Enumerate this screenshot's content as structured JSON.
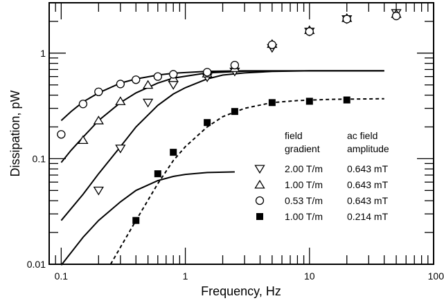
{
  "chart_data": {
    "type": "scatter",
    "xlabel": "Frequency, Hz",
    "ylabel": "Dissipation, pW",
    "xscale": "log",
    "yscale": "log",
    "xlim": [
      0.08,
      100
    ],
    "ylim": [
      0.01,
      3
    ],
    "x_tick_labels": [
      {
        "value": 0.1,
        "label": "0.1"
      },
      {
        "value": 1,
        "label": "1"
      },
      {
        "value": 10,
        "label": "10"
      },
      {
        "value": 100,
        "label": "100"
      }
    ],
    "y_tick_labels": [
      {
        "value": 0.01,
        "label": "0.01"
      },
      {
        "value": 0.1,
        "label": "0.1"
      },
      {
        "value": 1,
        "label": "1"
      }
    ],
    "legend": {
      "header_col1": [
        "field",
        "gradient"
      ],
      "header_col2": [
        "ac field",
        "amplitude"
      ],
      "placement": "lower-right"
    },
    "series": [
      {
        "gradient": "2.00 T/m",
        "amplitude": "0.643 mT",
        "marker": "triangle-down-open",
        "points": [
          [
            0.2,
            0.05
          ],
          [
            0.3,
            0.125
          ],
          [
            0.5,
            0.34
          ],
          [
            0.8,
            0.5
          ],
          [
            1.5,
            0.59
          ],
          [
            2.5,
            0.67
          ],
          [
            5,
            1.12
          ],
          [
            10,
            1.6
          ],
          [
            20,
            2.1
          ],
          [
            50,
            2.4
          ]
        ]
      },
      {
        "gradient": "1.00 T/m",
        "amplitude": "0.643 mT",
        "marker": "triangle-up-open",
        "points": [
          [
            0.15,
            0.15
          ],
          [
            0.2,
            0.23
          ],
          [
            0.3,
            0.35
          ],
          [
            0.5,
            0.5
          ],
          [
            0.8,
            0.58
          ],
          [
            1.5,
            0.64
          ],
          [
            2.5,
            0.72
          ],
          [
            5,
            1.22
          ],
          [
            10,
            1.65
          ],
          [
            20,
            2.15
          ],
          [
            50,
            2.35
          ]
        ]
      },
      {
        "gradient": "0.53 T/m",
        "amplitude": "0.643 mT",
        "marker": "circle-open",
        "points": [
          [
            0.1,
            0.17
          ],
          [
            0.15,
            0.33
          ],
          [
            0.2,
            0.43
          ],
          [
            0.3,
            0.51
          ],
          [
            0.4,
            0.56
          ],
          [
            0.6,
            0.6
          ],
          [
            0.8,
            0.63
          ],
          [
            1.5,
            0.66
          ],
          [
            2.5,
            0.77
          ],
          [
            5,
            1.2
          ],
          [
            10,
            1.6
          ],
          [
            20,
            2.1
          ],
          [
            50,
            2.25
          ]
        ]
      },
      {
        "gradient": "1.00 T/m",
        "amplitude": "0.214 mT",
        "marker": "square-filled",
        "points": [
          [
            0.4,
            0.026
          ],
          [
            0.6,
            0.072
          ],
          [
            0.8,
            0.115
          ],
          [
            1.5,
            0.22
          ],
          [
            2.5,
            0.28
          ],
          [
            5,
            0.34
          ],
          [
            10,
            0.35
          ],
          [
            20,
            0.36
          ]
        ]
      }
    ],
    "fit_curves": [
      {
        "style": "solid",
        "points": [
          [
            0.1,
            0.23
          ],
          [
            0.12,
            0.28
          ],
          [
            0.15,
            0.345
          ],
          [
            0.2,
            0.42
          ],
          [
            0.3,
            0.52
          ],
          [
            0.4,
            0.57
          ],
          [
            0.6,
            0.62
          ],
          [
            0.8,
            0.645
          ],
          [
            1.5,
            0.672
          ],
          [
            3,
            0.68
          ],
          [
            10,
            0.68
          ],
          [
            40,
            0.68
          ]
        ]
      },
      {
        "style": "solid",
        "points": [
          [
            0.1,
            0.092
          ],
          [
            0.12,
            0.12
          ],
          [
            0.15,
            0.16
          ],
          [
            0.2,
            0.23
          ],
          [
            0.3,
            0.34
          ],
          [
            0.4,
            0.42
          ],
          [
            0.6,
            0.52
          ],
          [
            0.8,
            0.58
          ],
          [
            1.5,
            0.65
          ],
          [
            3,
            0.675
          ],
          [
            10,
            0.68
          ],
          [
            40,
            0.68
          ]
        ]
      },
      {
        "style": "solid",
        "points": [
          [
            0.1,
            0.026
          ],
          [
            0.15,
            0.046
          ],
          [
            0.2,
            0.072
          ],
          [
            0.3,
            0.13
          ],
          [
            0.4,
            0.2
          ],
          [
            0.6,
            0.32
          ],
          [
            0.8,
            0.41
          ],
          [
            1,
            0.47
          ],
          [
            1.5,
            0.57
          ],
          [
            2,
            0.62
          ],
          [
            3,
            0.65
          ],
          [
            5,
            0.67
          ],
          [
            10,
            0.68
          ],
          [
            40,
            0.68
          ]
        ]
      },
      {
        "style": "solid",
        "points": [
          [
            0.1,
            0.0098
          ],
          [
            0.15,
            0.018
          ],
          [
            0.2,
            0.026
          ],
          [
            0.3,
            0.039
          ],
          [
            0.4,
            0.05
          ],
          [
            0.6,
            0.062
          ],
          [
            0.8,
            0.068
          ],
          [
            1,
            0.071
          ],
          [
            1.5,
            0.074
          ],
          [
            2.5,
            0.075
          ]
        ]
      },
      {
        "style": "dashed",
        "points": [
          [
            0.25,
            0.01
          ],
          [
            0.3,
            0.0145
          ],
          [
            0.4,
            0.026
          ],
          [
            0.6,
            0.058
          ],
          [
            0.8,
            0.096
          ],
          [
            1,
            0.13
          ],
          [
            1.5,
            0.2
          ],
          [
            2,
            0.25
          ],
          [
            3,
            0.3
          ],
          [
            5,
            0.34
          ],
          [
            8,
            0.355
          ],
          [
            15,
            0.365
          ],
          [
            40,
            0.37
          ]
        ]
      }
    ]
  }
}
